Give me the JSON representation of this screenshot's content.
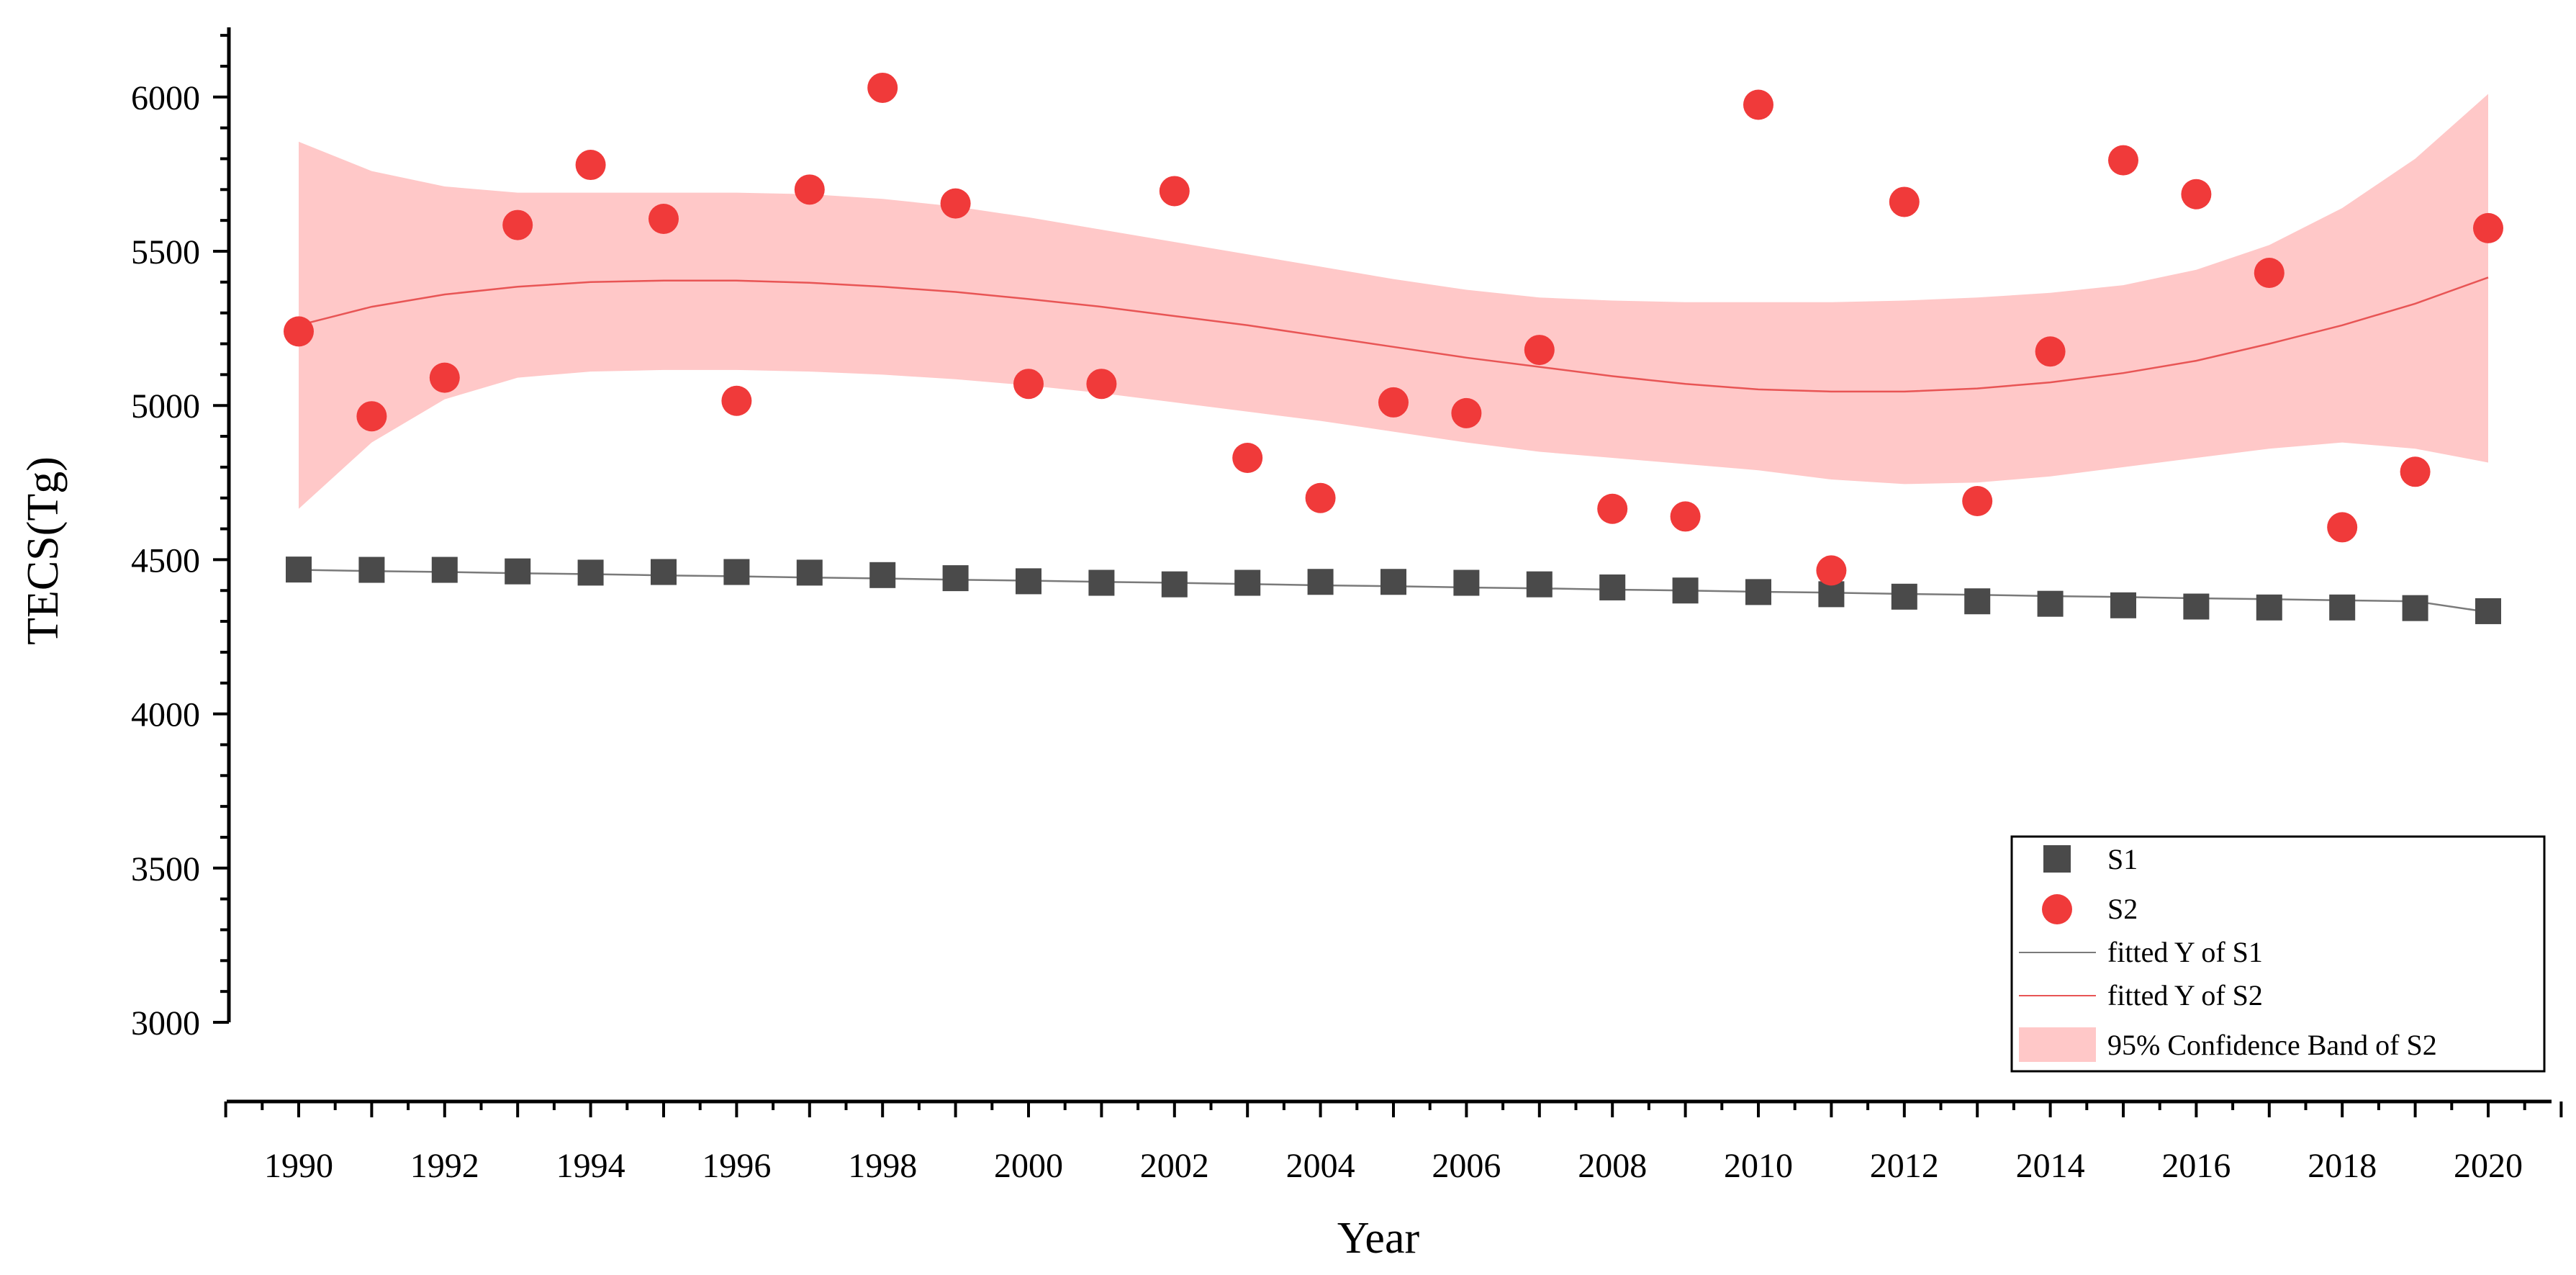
{
  "chart_data": {
    "type": "scatter",
    "title": "",
    "xlabel": "Year",
    "ylabel": "TECS(Tg)",
    "xlim": [
      1989,
      2021
    ],
    "ylim": [
      3000,
      6200
    ],
    "x_ticks": [
      "1990",
      "1992",
      "1994",
      "1996",
      "1998",
      "2000",
      "2002",
      "2004",
      "2006",
      "2008",
      "2010",
      "2012",
      "2014",
      "2016",
      "2018",
      "2020"
    ],
    "y_ticks": [
      "3000",
      "3500",
      "4000",
      "4500",
      "5000",
      "5500",
      "6000"
    ],
    "x": [
      1990,
      1991,
      1992,
      1993,
      1994,
      1995,
      1996,
      1997,
      1998,
      1999,
      2000,
      2001,
      2002,
      2003,
      2004,
      2005,
      2006,
      2007,
      2008,
      2009,
      2010,
      2011,
      2012,
      2013,
      2014,
      2015,
      2016,
      2017,
      2018,
      2019,
      2020
    ],
    "series": [
      {
        "name": "S1",
        "marker": "square",
        "color": "#4a4a4a",
        "values": [
          4468,
          4467,
          4467,
          4462,
          4458,
          4460,
          4460,
          4458,
          4450,
          4440,
          4430,
          4425,
          4420,
          4425,
          4428,
          4428,
          4425,
          4420,
          4410,
          4400,
          4395,
          4388,
          4380,
          4365,
          4357,
          4352,
          4348,
          4345,
          4345,
          4343,
          4333
        ]
      },
      {
        "name": "S2",
        "marker": "circle",
        "color": "#f03a3a",
        "values": [
          5240,
          4965,
          5090,
          5585,
          5780,
          5605,
          5015,
          5700,
          6030,
          5655,
          5070,
          5070,
          5695,
          4830,
          4700,
          5010,
          4975,
          5180,
          4665,
          4640,
          5975,
          4465,
          5660,
          4690,
          5175,
          5795,
          5685,
          5430,
          4605,
          4785,
          5575
        ]
      }
    ],
    "fits": [
      {
        "name": "fitted Y of S1",
        "color": "#7a7a7a",
        "values": [
          4467,
          4463,
          4460,
          4456,
          4453,
          4449,
          4446,
          4442,
          4439,
          4435,
          4432,
          4428,
          4425,
          4421,
          4417,
          4414,
          4410,
          4407,
          4403,
          4400,
          4396,
          4393,
          4389,
          4386,
          4382,
          4379,
          4375,
          4372,
          4368,
          4365,
          4330
        ]
      },
      {
        "name": "fitted Y of S2",
        "color": "#e85555",
        "values": [
          5260,
          5320,
          5360,
          5385,
          5400,
          5405,
          5405,
          5398,
          5385,
          5368,
          5345,
          5320,
          5290,
          5260,
          5225,
          5190,
          5155,
          5125,
          5095,
          5070,
          5052,
          5045,
          5045,
          5055,
          5075,
          5105,
          5145,
          5200,
          5260,
          5330,
          5415
        ]
      }
    ],
    "band": {
      "name": "95% Confidence Band of S2",
      "color": "#ffc8c8",
      "upper": [
        5855,
        5760,
        5710,
        5690,
        5690,
        5690,
        5690,
        5685,
        5670,
        5645,
        5610,
        5570,
        5530,
        5490,
        5450,
        5410,
        5375,
        5350,
        5340,
        5335,
        5335,
        5335,
        5340,
        5350,
        5365,
        5390,
        5440,
        5520,
        5640,
        5800,
        6010
      ],
      "lower": [
        4665,
        4880,
        5020,
        5090,
        5110,
        5115,
        5115,
        5110,
        5100,
        5085,
        5065,
        5040,
        5010,
        4980,
        4950,
        4915,
        4880,
        4850,
        4830,
        4810,
        4790,
        4760,
        4745,
        4750,
        4770,
        4800,
        4830,
        4860,
        4880,
        4860,
        4815
      ]
    },
    "legend": {
      "position": "bottom-right",
      "entries": [
        "S1",
        "S2",
        "fitted Y of S1",
        "fitted Y of S2",
        "95% Confidence Band of S2"
      ]
    }
  }
}
